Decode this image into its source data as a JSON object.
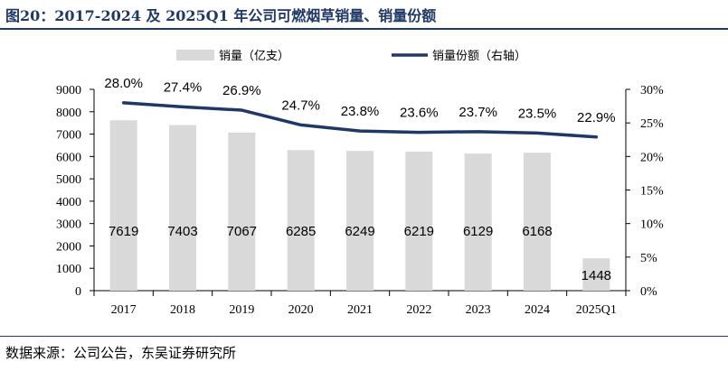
{
  "figure": {
    "title": "图20：2017-2024 及 2025Q1 年公司可燃烟草销量、销量份额",
    "source": "数据来源：公司公告，东吴证券研究所"
  },
  "colors": {
    "bar": "#d9d9d9",
    "line": "#1f3864",
    "title": "#1f3864",
    "axis": "#000000"
  },
  "chart_data": {
    "type": "bar",
    "title": "2017-2024 及 2025Q1 年公司可燃烟草销量、销量份额",
    "categories": [
      "2017",
      "2018",
      "2019",
      "2020",
      "2021",
      "2022",
      "2023",
      "2024",
      "2025Q1"
    ],
    "series": [
      {
        "name": "销量（亿支）",
        "type": "bar",
        "axis": "left",
        "values": [
          7619,
          7403,
          7067,
          6285,
          6249,
          6219,
          6129,
          6168,
          1448
        ],
        "labels": [
          "7619",
          "7403",
          "7067",
          "6285",
          "6249",
          "6219",
          "6129",
          "6168",
          "1448"
        ]
      },
      {
        "name": "销量份额（右轴）",
        "type": "line",
        "axis": "right",
        "values": [
          28.0,
          27.4,
          26.9,
          24.7,
          23.8,
          23.6,
          23.7,
          23.5,
          22.9
        ],
        "labels": [
          "28.0%",
          "27.4%",
          "26.9%",
          "24.7%",
          "23.8%",
          "23.6%",
          "23.7%",
          "23.5%",
          "22.9%"
        ]
      }
    ],
    "y_left": {
      "min": 0,
      "max": 9000,
      "ticks": [
        "0",
        "1000",
        "2000",
        "3000",
        "4000",
        "5000",
        "6000",
        "7000",
        "8000",
        "9000"
      ]
    },
    "y_right": {
      "min": 0,
      "max": 30,
      "ticks": [
        "0%",
        "5%",
        "10%",
        "15%",
        "20%",
        "25%",
        "30%"
      ]
    },
    "legend": [
      "销量（亿支）",
      "销量份额（右轴）"
    ],
    "legend_position": "top-center",
    "grid": false
  }
}
